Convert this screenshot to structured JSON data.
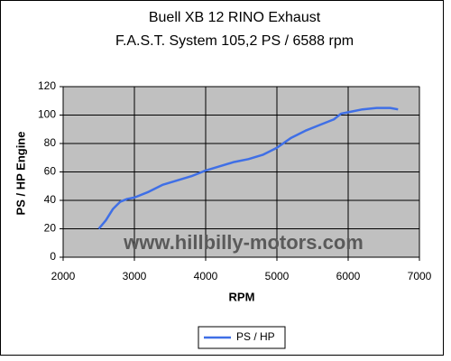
{
  "chart_data": {
    "type": "line",
    "title": "Buell XB 12 RINO Exhaust",
    "subtitle": "F.A.S.T. System 105,2 PS / 6588 rpm",
    "x_label": "RPM",
    "y_label": "PS / HP Engine",
    "annotation": "www.hillbilly-motors.com",
    "x": [
      2500,
      2600,
      2700,
      2800,
      2900,
      3000,
      3200,
      3400,
      3600,
      3800,
      4000,
      4200,
      4400,
      4600,
      4800,
      5000,
      5200,
      5400,
      5600,
      5800,
      5900,
      6000,
      6200,
      6400,
      6588,
      6700
    ],
    "series": [
      {
        "name": "PS / HP",
        "color": "#3f6fe6",
        "values": [
          20,
          26,
          34,
          39,
          41,
          42,
          46,
          51,
          54,
          57,
          61,
          64,
          67,
          69,
          72,
          77,
          84,
          89,
          93,
          97,
          101,
          102,
          104,
          105,
          105,
          104
        ]
      }
    ],
    "xlim": [
      2000,
      7000
    ],
    "xticks": [
      2000,
      3000,
      4000,
      5000,
      6000,
      7000
    ],
    "ylim": [
      0,
      120
    ],
    "yticks": [
      0,
      20,
      40,
      60,
      80,
      100,
      120
    ],
    "grid": true,
    "legend": "bottom"
  }
}
